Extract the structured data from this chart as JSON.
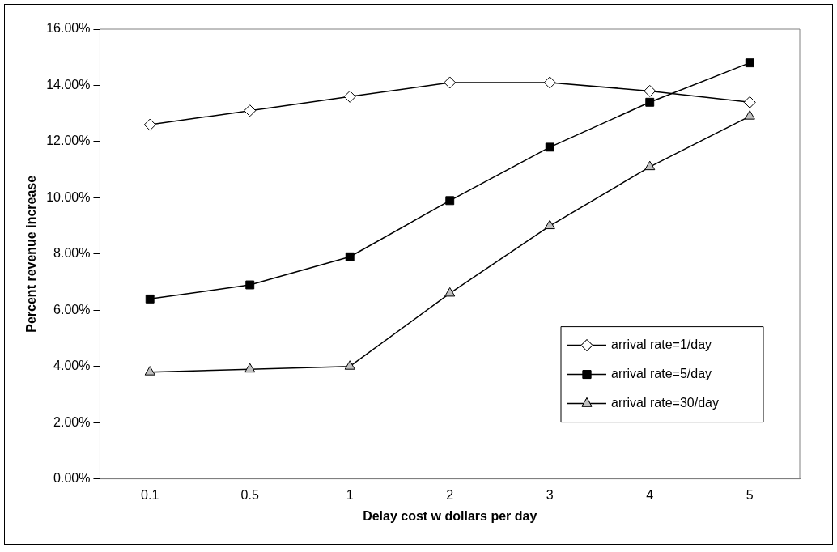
{
  "chart_data": {
    "type": "line",
    "xlabel": "Delay cost w dollars per day",
    "ylabel": "Percent revenue increase",
    "categories": [
      "0.1",
      "0.5",
      "1",
      "2",
      "3",
      "4",
      "5"
    ],
    "series": [
      {
        "name": "arrival rate=1/day",
        "color": "#ffffff",
        "marker": "diamond",
        "values": [
          12.6,
          13.1,
          13.6,
          14.1,
          14.1,
          13.8,
          13.4
        ]
      },
      {
        "name": "arrival rate=5/day",
        "color": "#000000",
        "marker": "square",
        "values": [
          6.4,
          6.9,
          7.9,
          9.9,
          11.8,
          13.4,
          14.8
        ]
      },
      {
        "name": "arrival rate=30/day",
        "color": "#c0c0c0",
        "marker": "triangle",
        "values": [
          3.8,
          3.9,
          4.0,
          6.6,
          9.0,
          11.1,
          12.9
        ]
      }
    ],
    "ylim": [
      0,
      16
    ],
    "yticks": [
      {
        "value": 0,
        "label": "0.00%"
      },
      {
        "value": 2,
        "label": "2.00%"
      },
      {
        "value": 4,
        "label": "4.00%"
      },
      {
        "value": 6,
        "label": "6.00%"
      },
      {
        "value": 8,
        "label": "8.00%"
      },
      {
        "value": 10,
        "label": "10.00%"
      },
      {
        "value": 12,
        "label": "12.00%"
      },
      {
        "value": 14,
        "label": "14.00%"
      },
      {
        "value": 16,
        "label": "16.00%"
      }
    ],
    "grid": false,
    "legend": "bottom right",
    "line_style": "solid"
  }
}
